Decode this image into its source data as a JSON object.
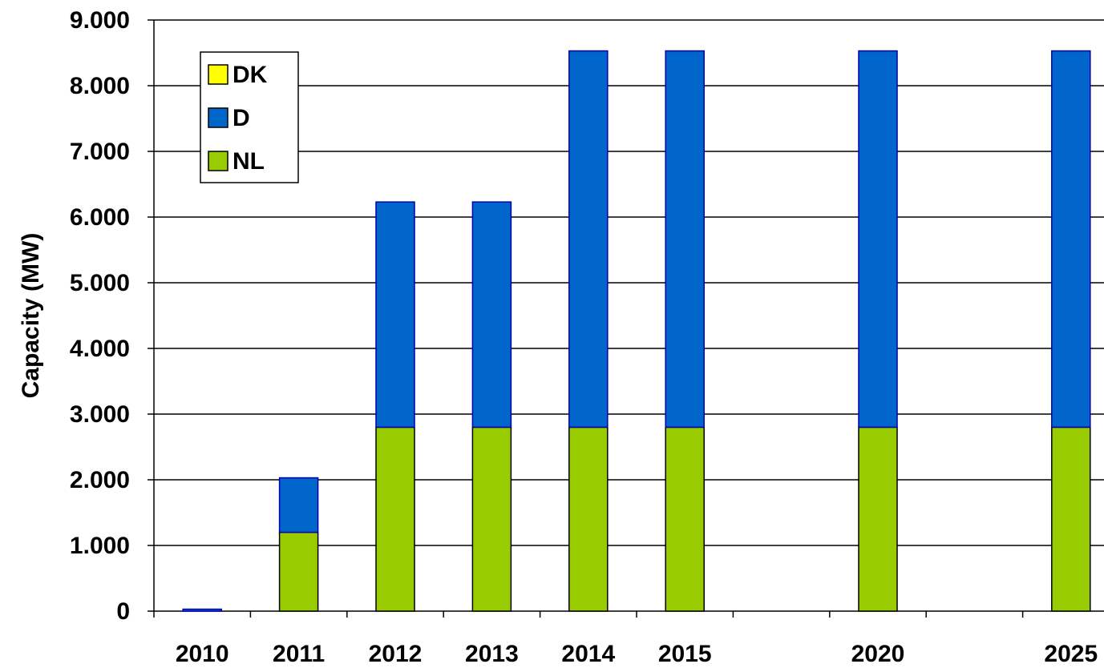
{
  "chart_data": {
    "type": "stacked_bar",
    "y_label": "Capacity (MW)",
    "categories": [
      "2010",
      "2011",
      "2012",
      "2013",
      "2014",
      "2015",
      null,
      "2020",
      null,
      "2025"
    ],
    "series": [
      {
        "name": "NL",
        "color": "#99cc00",
        "values": [
          0,
          1200,
          2800,
          2800,
          2800,
          2800,
          null,
          2800,
          null,
          2800
        ]
      },
      {
        "name": "D",
        "color": "#0066cc",
        "values": [
          30,
          830,
          3430,
          3430,
          5730,
          5730,
          null,
          5730,
          null,
          5730
        ]
      },
      {
        "name": "DK",
        "color": "#ffff00",
        "values": [
          0,
          0,
          0,
          0,
          0,
          0,
          null,
          0,
          null,
          0
        ]
      }
    ],
    "ylim": [
      0,
      9000
    ],
    "yticks": [
      {
        "value": 0,
        "label": "0"
      },
      {
        "value": 1000,
        "label": "1.000"
      },
      {
        "value": 2000,
        "label": "2.000"
      },
      {
        "value": 3000,
        "label": "3.000"
      },
      {
        "value": 4000,
        "label": "4.000"
      },
      {
        "value": 5000,
        "label": "5.000"
      },
      {
        "value": 6000,
        "label": "6.000"
      },
      {
        "value": 7000,
        "label": "7.000"
      },
      {
        "value": 8000,
        "label": "8.000"
      },
      {
        "value": 9000,
        "label": "9.000"
      }
    ],
    "grid": true,
    "legend": "upper left"
  }
}
